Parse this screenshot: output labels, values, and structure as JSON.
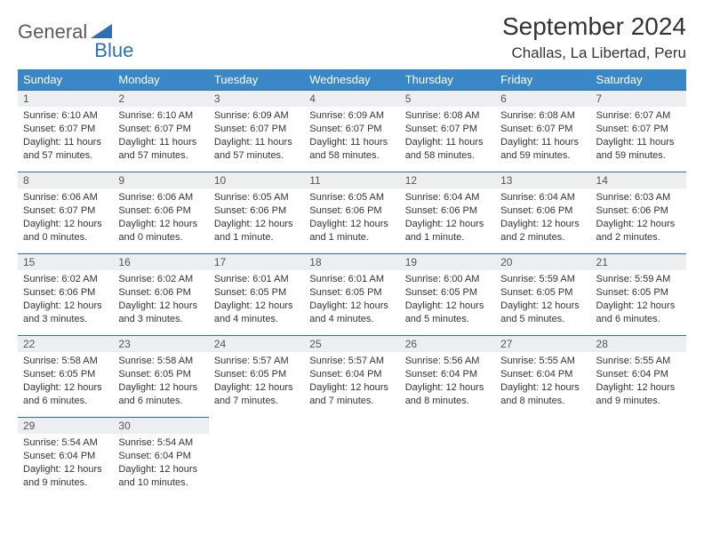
{
  "logo": {
    "general": "General",
    "blue": "Blue"
  },
  "title": "September 2024",
  "location": "Challas, La Libertad, Peru",
  "colors": {
    "header_bg": "#3a87c8",
    "daynum_bg": "#eceef0",
    "border_top": "#2d6fb5",
    "text": "#333333",
    "logo_gray": "#5a5a5a",
    "logo_blue": "#2d6fb5"
  },
  "weekdays": [
    "Sunday",
    "Monday",
    "Tuesday",
    "Wednesday",
    "Thursday",
    "Friday",
    "Saturday"
  ],
  "days": [
    {
      "n": "1",
      "sr": "6:10 AM",
      "ss": "6:07 PM",
      "dl": "11 hours and 57 minutes."
    },
    {
      "n": "2",
      "sr": "6:10 AM",
      "ss": "6:07 PM",
      "dl": "11 hours and 57 minutes."
    },
    {
      "n": "3",
      "sr": "6:09 AM",
      "ss": "6:07 PM",
      "dl": "11 hours and 57 minutes."
    },
    {
      "n": "4",
      "sr": "6:09 AM",
      "ss": "6:07 PM",
      "dl": "11 hours and 58 minutes."
    },
    {
      "n": "5",
      "sr": "6:08 AM",
      "ss": "6:07 PM",
      "dl": "11 hours and 58 minutes."
    },
    {
      "n": "6",
      "sr": "6:08 AM",
      "ss": "6:07 PM",
      "dl": "11 hours and 59 minutes."
    },
    {
      "n": "7",
      "sr": "6:07 AM",
      "ss": "6:07 PM",
      "dl": "11 hours and 59 minutes."
    },
    {
      "n": "8",
      "sr": "6:06 AM",
      "ss": "6:07 PM",
      "dl": "12 hours and 0 minutes."
    },
    {
      "n": "9",
      "sr": "6:06 AM",
      "ss": "6:06 PM",
      "dl": "12 hours and 0 minutes."
    },
    {
      "n": "10",
      "sr": "6:05 AM",
      "ss": "6:06 PM",
      "dl": "12 hours and 1 minute."
    },
    {
      "n": "11",
      "sr": "6:05 AM",
      "ss": "6:06 PM",
      "dl": "12 hours and 1 minute."
    },
    {
      "n": "12",
      "sr": "6:04 AM",
      "ss": "6:06 PM",
      "dl": "12 hours and 1 minute."
    },
    {
      "n": "13",
      "sr": "6:04 AM",
      "ss": "6:06 PM",
      "dl": "12 hours and 2 minutes."
    },
    {
      "n": "14",
      "sr": "6:03 AM",
      "ss": "6:06 PM",
      "dl": "12 hours and 2 minutes."
    },
    {
      "n": "15",
      "sr": "6:02 AM",
      "ss": "6:06 PM",
      "dl": "12 hours and 3 minutes."
    },
    {
      "n": "16",
      "sr": "6:02 AM",
      "ss": "6:06 PM",
      "dl": "12 hours and 3 minutes."
    },
    {
      "n": "17",
      "sr": "6:01 AM",
      "ss": "6:05 PM",
      "dl": "12 hours and 4 minutes."
    },
    {
      "n": "18",
      "sr": "6:01 AM",
      "ss": "6:05 PM",
      "dl": "12 hours and 4 minutes."
    },
    {
      "n": "19",
      "sr": "6:00 AM",
      "ss": "6:05 PM",
      "dl": "12 hours and 5 minutes."
    },
    {
      "n": "20",
      "sr": "5:59 AM",
      "ss": "6:05 PM",
      "dl": "12 hours and 5 minutes."
    },
    {
      "n": "21",
      "sr": "5:59 AM",
      "ss": "6:05 PM",
      "dl": "12 hours and 6 minutes."
    },
    {
      "n": "22",
      "sr": "5:58 AM",
      "ss": "6:05 PM",
      "dl": "12 hours and 6 minutes."
    },
    {
      "n": "23",
      "sr": "5:58 AM",
      "ss": "6:05 PM",
      "dl": "12 hours and 6 minutes."
    },
    {
      "n": "24",
      "sr": "5:57 AM",
      "ss": "6:05 PM",
      "dl": "12 hours and 7 minutes."
    },
    {
      "n": "25",
      "sr": "5:57 AM",
      "ss": "6:04 PM",
      "dl": "12 hours and 7 minutes."
    },
    {
      "n": "26",
      "sr": "5:56 AM",
      "ss": "6:04 PM",
      "dl": "12 hours and 8 minutes."
    },
    {
      "n": "27",
      "sr": "5:55 AM",
      "ss": "6:04 PM",
      "dl": "12 hours and 8 minutes."
    },
    {
      "n": "28",
      "sr": "5:55 AM",
      "ss": "6:04 PM",
      "dl": "12 hours and 9 minutes."
    },
    {
      "n": "29",
      "sr": "5:54 AM",
      "ss": "6:04 PM",
      "dl": "12 hours and 9 minutes."
    },
    {
      "n": "30",
      "sr": "5:54 AM",
      "ss": "6:04 PM",
      "dl": "12 hours and 10 minutes."
    }
  ],
  "labels": {
    "sunrise": "Sunrise:",
    "sunset": "Sunset:",
    "daylight": "Daylight:"
  },
  "layout": {
    "cols": 7,
    "rows": 5,
    "start_offset": 0
  }
}
